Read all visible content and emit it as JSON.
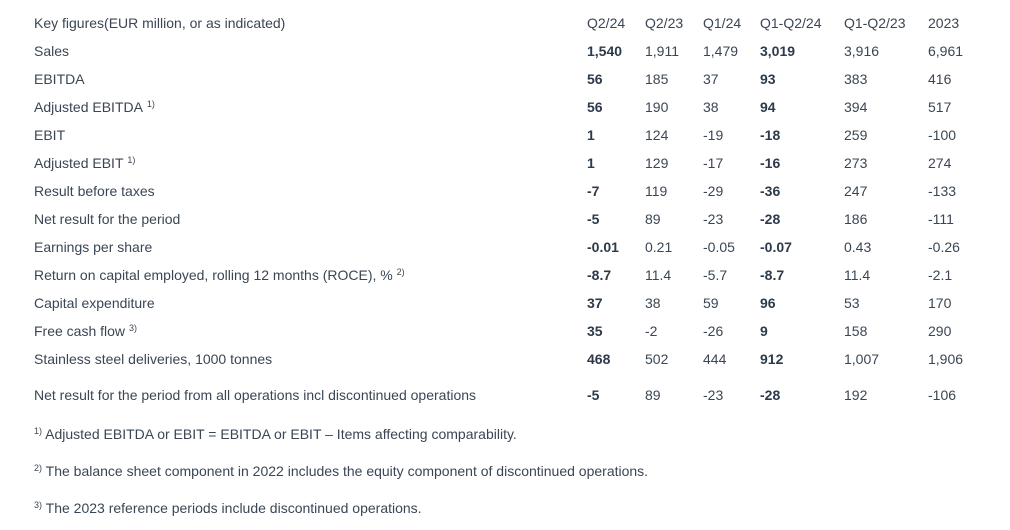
{
  "header": {
    "label": "Key figures(EUR million, or as indicated)",
    "cols": [
      "Q2/24",
      "Q2/23",
      "Q1/24",
      "Q1-Q2/24",
      "Q1-Q2/23",
      "2023"
    ]
  },
  "rows": [
    {
      "label": "Sales",
      "sup": "",
      "values": [
        "1,540",
        "1,911",
        "1,479",
        "3,019",
        "3,916",
        "6,961"
      ]
    },
    {
      "label": "EBITDA",
      "sup": "",
      "values": [
        "56",
        "185",
        "37",
        "93",
        "383",
        "416"
      ]
    },
    {
      "label": "Adjusted EBITDA",
      "sup": "1)",
      "values": [
        "56",
        "190",
        "38",
        "94",
        "394",
        "517"
      ]
    },
    {
      "label": "EBIT",
      "sup": "",
      "values": [
        "1",
        "124",
        "-19",
        "-18",
        "259",
        "-100"
      ]
    },
    {
      "label": "Adjusted EBIT",
      "sup": "1)",
      "values": [
        "1",
        "129",
        "-17",
        "-16",
        "273",
        "274"
      ]
    },
    {
      "label": "Result before taxes",
      "sup": "",
      "values": [
        "-7",
        "119",
        "-29",
        "-36",
        "247",
        "-133"
      ]
    },
    {
      "label": "Net result for the period",
      "sup": "",
      "values": [
        "-5",
        "89",
        "-23",
        "-28",
        "186",
        "-111"
      ]
    },
    {
      "label": "Earnings per share",
      "sup": "",
      "values": [
        "-0.01",
        "0.21",
        "-0.05",
        "-0.07",
        "0.43",
        "-0.26"
      ]
    },
    {
      "label": "Return on capital employed, rolling 12 months (ROCE), %",
      "sup": "2)",
      "values": [
        "-8.7",
        "11.4",
        "-5.7",
        "-8.7",
        "11.4",
        "-2.1"
      ]
    },
    {
      "label": "Capital expenditure",
      "sup": "",
      "values": [
        "37",
        "38",
        "59",
        "96",
        "53",
        "170"
      ]
    },
    {
      "label": "Free cash flow",
      "sup": "3)",
      "values": [
        "35",
        "-2",
        "-26",
        "9",
        "158",
        "290"
      ]
    },
    {
      "label": "Stainless steel deliveries, 1000 tonnes",
      "sup": "",
      "values": [
        "468",
        "502",
        "444",
        "912",
        "1,007",
        "1,906"
      ]
    },
    {
      "label": "Net result for the period from all operations incl discontinued operations",
      "sup": "",
      "values": [
        "-5",
        "89",
        "-23",
        "-28",
        "192",
        "-106"
      ]
    }
  ],
  "footnotes": [
    {
      "mark": "1)",
      "text": "Adjusted EBITDA or EBIT = EBITDA or EBIT – Items affecting comparability."
    },
    {
      "mark": "2)",
      "text": "The balance sheet component in 2022 includes the equity component of discontinued operations."
    },
    {
      "mark": "3)",
      "text": "The 2023 reference periods include discontinued operations."
    }
  ]
}
